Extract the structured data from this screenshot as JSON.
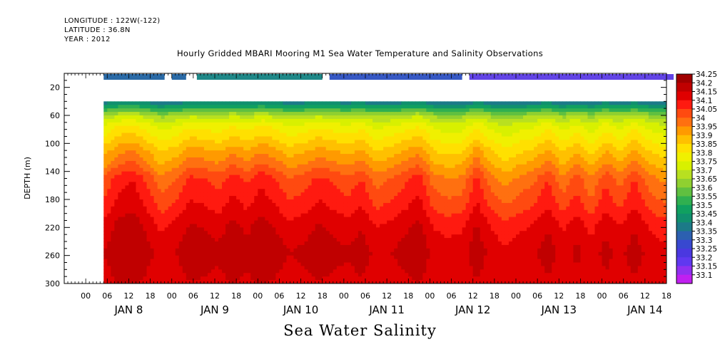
{
  "header": {
    "longitude": "LONGITUDE : 122W(-122)",
    "latitude": "LATITUDE : 36.8N",
    "year": "YEAR : 2012"
  },
  "chart_data": {
    "type": "heatmap",
    "title": "Hourly Gridded MBARI Mooring M1 Sea Water Temperature and Salinity Observations",
    "subtitle": "Sea Water Salinity",
    "ylabel": "DEPTH (m)",
    "xlabel": "",
    "y_inverted": true,
    "ylim": [
      300,
      0
    ],
    "y_ticks": [
      20,
      60,
      100,
      140,
      180,
      220,
      260,
      300
    ],
    "x_unit": "hours since JAN 8 00:00",
    "xlim": [
      -6,
      162
    ],
    "x_hour_tick_labels": [
      "00",
      "06",
      "12",
      "18",
      "00",
      "06",
      "12",
      "18",
      "00",
      "06",
      "12",
      "18",
      "00",
      "06",
      "12",
      "18",
      "00",
      "06",
      "12",
      "18",
      "00",
      "06",
      "12",
      "18",
      "00",
      "06",
      "12",
      "18"
    ],
    "x_day_labels": [
      "JAN  8",
      "JAN  9",
      "JAN 10",
      "JAN 11",
      "JAN 12",
      "JAN 13",
      "JAN 14"
    ],
    "data_time_range_hours": [
      5,
      166
    ],
    "data_depth_range_m": [
      40,
      300
    ],
    "colorbar": {
      "levels": [
        "34.25",
        "34.2",
        "34.15",
        "34.1",
        "34.05",
        "34",
        "33.95",
        "33.9",
        "33.85",
        "33.8",
        "33.75",
        "33.7",
        "33.65",
        "33.6",
        "33.55",
        "33.5",
        "33.45",
        "33.4",
        "33.35",
        "33.3",
        "33.25",
        "33.2",
        "33.15",
        "33.1"
      ],
      "colors": [
        "#a00000",
        "#c00000",
        "#e00000",
        "#ff1a10",
        "#ff4a10",
        "#ff7010",
        "#ff9a00",
        "#ffc000",
        "#ffe000",
        "#f0f000",
        "#d8f000",
        "#b8e020",
        "#90d030",
        "#60c040",
        "#30b050",
        "#10a060",
        "#10906e",
        "#1c7a88",
        "#2c60b0",
        "#3848d0",
        "#4a38e0",
        "#6038f0",
        "#9030f0",
        "#c020f0"
      ]
    },
    "surface_bar": [
      {
        "start": 5,
        "end": 22,
        "color": "#2a6aa6"
      },
      {
        "start": 24,
        "end": 28,
        "color": "#2a6aa6"
      },
      {
        "start": 31,
        "end": 66,
        "color": "#1f8888"
      },
      {
        "start": 68,
        "end": 105,
        "color": "#3658c4"
      },
      {
        "start": 107,
        "end": 164,
        "color": "#6244e6"
      }
    ],
    "depth_levels_m": [
      40,
      50,
      60,
      75,
      90,
      110,
      130,
      150,
      170,
      195,
      215,
      235,
      255,
      275,
      300
    ],
    "base_profile_psu": [
      33.4,
      33.55,
      33.7,
      33.8,
      33.85,
      33.92,
      33.98,
      34.05,
      34.08,
      34.12,
      34.16,
      34.18,
      34.2,
      34.19,
      34.18
    ],
    "time_anomaly_hours": [
      5,
      9,
      13,
      17,
      21,
      25,
      29,
      33,
      37,
      41,
      45,
      49,
      53,
      57,
      61,
      65,
      69,
      73,
      77,
      81,
      85,
      89,
      93,
      97,
      101,
      105,
      109,
      113,
      117,
      121,
      125,
      129,
      133,
      137,
      141,
      145,
      149,
      153,
      157,
      161,
      166
    ],
    "time_anomaly_psu": [
      0.0,
      0.06,
      0.08,
      0.03,
      -0.03,
      0.0,
      0.05,
      0.04,
      0.02,
      0.06,
      0.03,
      0.07,
      0.04,
      0.0,
      0.02,
      0.05,
      0.03,
      0.01,
      0.04,
      -0.02,
      0.0,
      0.03,
      0.06,
      -0.02,
      -0.04,
      -0.03,
      0.05,
      -0.02,
      -0.06,
      -0.03,
      -0.01,
      0.04,
      -0.03,
      0.02,
      -0.04,
      0.03,
      -0.02,
      0.04,
      -0.02,
      -0.05,
      -0.04
    ]
  }
}
